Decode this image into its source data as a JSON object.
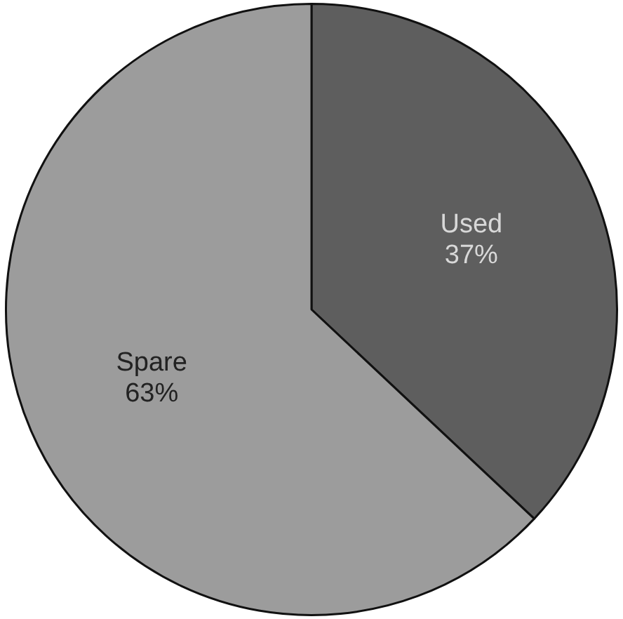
{
  "chart_data": {
    "type": "pie",
    "categories": [
      "Used",
      "Spare"
    ],
    "values": [
      37,
      63
    ],
    "colors": [
      "#5e5e5e",
      "#9c9c9c"
    ],
    "value_labels": [
      "37%",
      "63%"
    ],
    "legend": false
  }
}
